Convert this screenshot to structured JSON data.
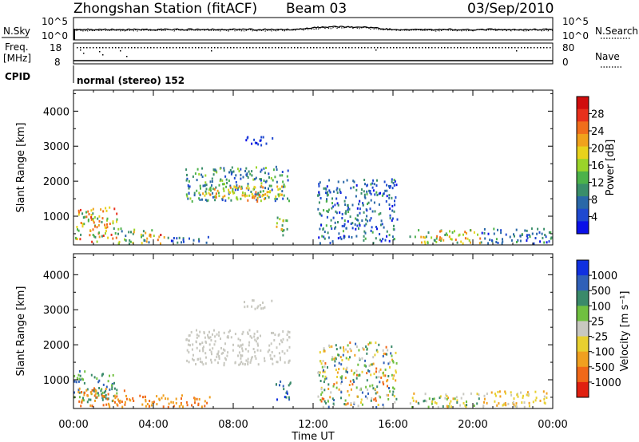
{
  "header": {
    "station_title": "Zhongshan Station (fitACF)",
    "beam": "Beam 03",
    "date": "03/Sep/2010",
    "cpid_label": "CPID",
    "cpid_text": "normal (stereo) 152"
  },
  "top_panels": {
    "nsky_label": "N.Sky",
    "nsky_ticks": [
      "10^5",
      "10^0"
    ],
    "nsearch_label": "N.Search",
    "nsearch_ticks": [
      "10^5",
      "10^0"
    ],
    "freq_label_1": "Freq.",
    "freq_label_2": "[MHz]",
    "freq_ticks": [
      "18",
      "8"
    ],
    "nave_label": "Nave",
    "nave_ticks": [
      "80",
      "0"
    ]
  },
  "chart_data": [
    {
      "type": "heatmap",
      "name": "Power",
      "ylabel": "Slant Range [km]",
      "xlabel": "Time UT",
      "x_ticks": [
        "00:00",
        "04:00",
        "08:00",
        "12:00",
        "16:00",
        "20:00",
        "00:00"
      ],
      "xlim_hours": [
        0,
        24
      ],
      "y_ticks": [
        1000,
        2000,
        3000,
        4000
      ],
      "ylim": [
        180,
        4600
      ],
      "colorbar_label": "Power [dB]",
      "colorbar_ticks": [
        "4",
        "8",
        "12",
        "16",
        "20",
        "24",
        "28"
      ],
      "colorbar_colors": [
        "#0a10e8",
        "#1f49d0",
        "#2a68a8",
        "#3a8e6a",
        "#4cb24a",
        "#9ad42a",
        "#e8d21c",
        "#f0a21c",
        "#f06e1c",
        "#e8301c",
        "#d00d0d"
      ],
      "regions": [
        {
          "t": [
            0.0,
            2.2
          ],
          "r": [
            300,
            1300
          ],
          "level": [
            3,
            9
          ]
        },
        {
          "t": [
            2.2,
            4.0
          ],
          "r": [
            250,
            700
          ],
          "level": [
            2,
            7
          ]
        },
        {
          "t": [
            3.6,
            4.6
          ],
          "r": [
            250,
            500
          ],
          "level": [
            6,
            10
          ]
        },
        {
          "t": [
            4.6,
            6.8
          ],
          "r": [
            250,
            450
          ],
          "level": [
            0,
            3
          ]
        },
        {
          "t": [
            5.6,
            10.8
          ],
          "r": [
            1450,
            2450
          ],
          "level": [
            1,
            5
          ]
        },
        {
          "t": [
            6.2,
            10.4
          ],
          "r": [
            1550,
            1900
          ],
          "level": [
            5,
            8
          ]
        },
        {
          "t": [
            8.4,
            9.9
          ],
          "r": [
            1450,
            1650
          ],
          "level": [
            6,
            8
          ]
        },
        {
          "t": [
            8.5,
            10.0
          ],
          "r": [
            3050,
            3300
          ],
          "level": [
            0,
            1
          ]
        },
        {
          "t": [
            10.1,
            10.9
          ],
          "r": [
            450,
            1000
          ],
          "level": [
            2,
            7
          ]
        },
        {
          "t": [
            12.2,
            16.2
          ],
          "r": [
            250,
            2100
          ],
          "level": [
            0,
            4
          ]
        },
        {
          "t": [
            16.8,
            20.4
          ],
          "r": [
            250,
            650
          ],
          "level": [
            2,
            8
          ]
        },
        {
          "t": [
            20.4,
            23.9
          ],
          "r": [
            250,
            700
          ],
          "level": [
            0,
            4
          ]
        }
      ]
    },
    {
      "type": "heatmap",
      "name": "Velocity",
      "ylabel": "Slant Range [km]",
      "xlabel": "Time UT",
      "x_ticks": [
        "00:00",
        "04:00",
        "08:00",
        "12:00",
        "16:00",
        "20:00",
        "00:00"
      ],
      "xlim_hours": [
        0,
        24
      ],
      "y_ticks": [
        1000,
        2000,
        3000,
        4000
      ],
      "ylim": [
        180,
        4600
      ],
      "colorbar_label": "Velocity [m s⁻¹]",
      "colorbar_ticks": [
        "1000",
        "500",
        "100",
        "25",
        "-25",
        "-100",
        "-500",
        "-1000"
      ],
      "colorbar_colors": [
        "#1030e0",
        "#3060b8",
        "#3a8a6a",
        "#70c040",
        "#c8c8c0",
        "#e8d030",
        "#f0a020",
        "#f06818",
        "#e02010"
      ],
      "regions": [
        {
          "t": [
            0.0,
            2.2
          ],
          "r": [
            400,
            1300
          ],
          "level": [
            1,
            3
          ]
        },
        {
          "t": [
            0.2,
            2.6
          ],
          "r": [
            250,
            800
          ],
          "level": [
            6,
            7
          ]
        },
        {
          "t": [
            2.4,
            6.8
          ],
          "r": [
            250,
            600
          ],
          "level": [
            6,
            7
          ]
        },
        {
          "t": [
            5.6,
            10.8
          ],
          "r": [
            1450,
            2450
          ],
          "level": [
            4,
            4
          ]
        },
        {
          "t": [
            8.4,
            10.0
          ],
          "r": [
            3050,
            3300
          ],
          "level": [
            4,
            4
          ]
        },
        {
          "t": [
            10.1,
            10.9
          ],
          "r": [
            450,
            1000
          ],
          "level": [
            0,
            2
          ]
        },
        {
          "t": [
            12.2,
            16.2
          ],
          "r": [
            250,
            2100
          ],
          "level": [
            1,
            7
          ]
        },
        {
          "t": [
            16.8,
            20.4
          ],
          "r": [
            250,
            650
          ],
          "level": [
            2,
            6
          ]
        },
        {
          "t": [
            20.4,
            23.9
          ],
          "r": [
            250,
            700
          ],
          "level": [
            4,
            6
          ]
        }
      ]
    }
  ]
}
